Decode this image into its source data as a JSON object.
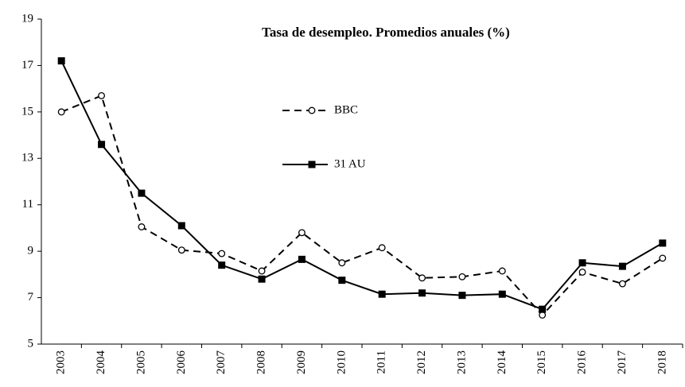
{
  "chart_data": {
    "type": "line",
    "title": "Tasa de desempleo. Promedios anuales (%)",
    "categories": [
      "2003",
      "2004",
      "2005",
      "2006",
      "2007",
      "2008",
      "2009",
      "2010",
      "2011",
      "2012",
      "2013",
      "2014",
      "2015",
      "2016",
      "2017",
      "2018"
    ],
    "series": [
      {
        "name": "BBC",
        "color": "#000000",
        "style": "dashed",
        "marker": "circle",
        "values": [
          15.0,
          15.7,
          10.05,
          9.05,
          8.9,
          8.15,
          9.8,
          8.5,
          9.15,
          7.85,
          7.9,
          8.15,
          6.25,
          8.1,
          7.6,
          8.7
        ]
      },
      {
        "name": "31 AU",
        "color": "#000000",
        "style": "solid",
        "marker": "square",
        "values": [
          17.2,
          13.6,
          11.5,
          10.1,
          8.4,
          7.8,
          8.65,
          7.75,
          7.15,
          7.2,
          7.1,
          7.15,
          6.5,
          8.5,
          8.35,
          9.35
        ]
      }
    ],
    "ylim": [
      5,
      19
    ],
    "yticks": [
      5,
      7,
      9,
      11,
      13,
      15,
      17,
      19
    ],
    "grid": false
  }
}
